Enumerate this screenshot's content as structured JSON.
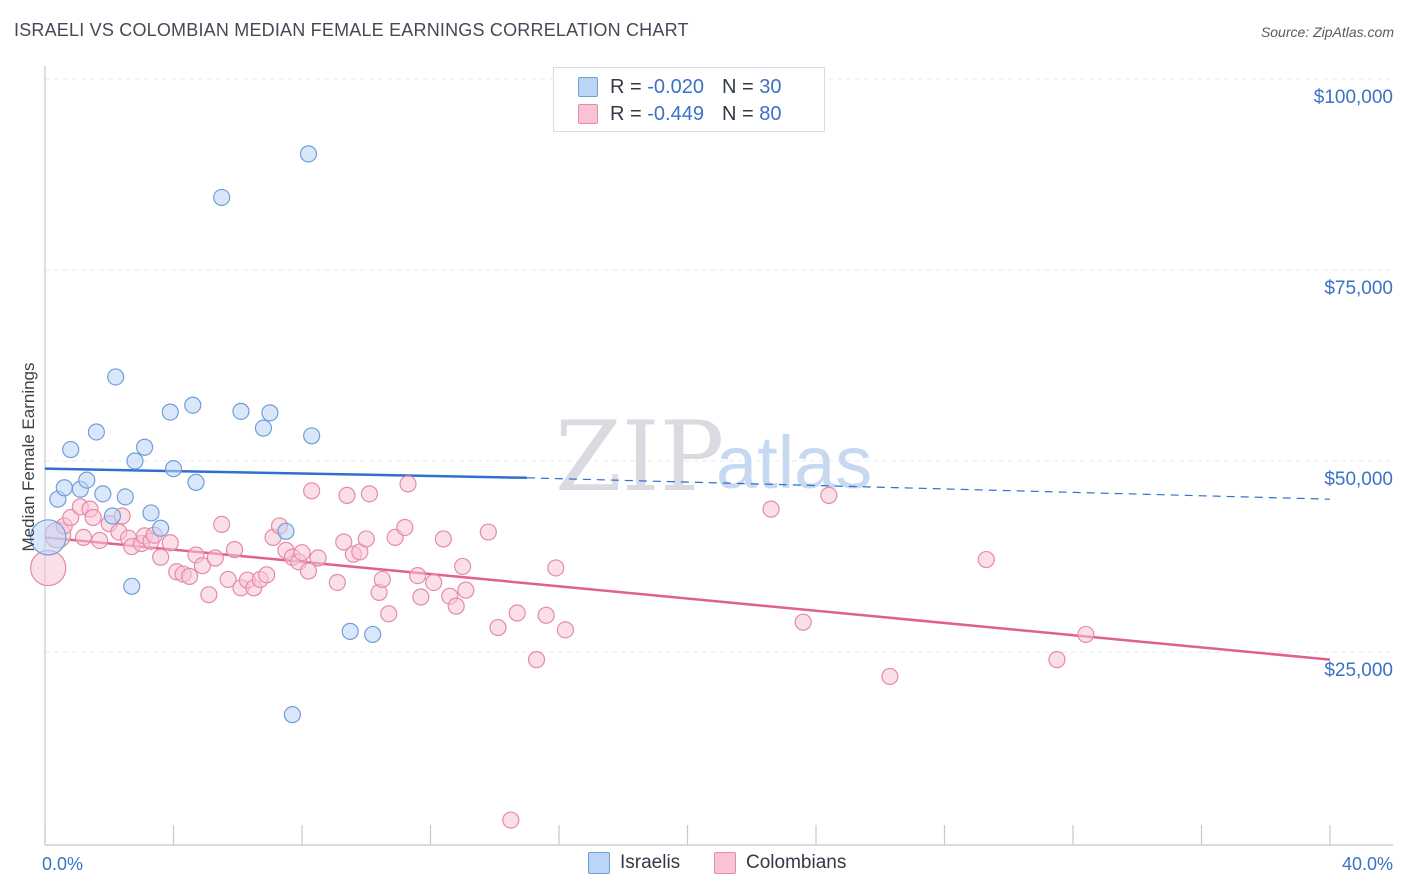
{
  "header": {
    "title": "ISRAELI VS COLOMBIAN MEDIAN FEMALE EARNINGS CORRELATION CHART",
    "source": "Source: ZipAtlas.com"
  },
  "legend": {
    "rows": [
      {
        "r_label": "R =",
        "r_value": "-0.020",
        "n_label": "N =",
        "n_value": "30"
      },
      {
        "r_label": "R =",
        "r_value": "-0.449",
        "n_label": "N =",
        "n_value": "80"
      }
    ],
    "bottom": [
      "Israelis",
      "Colombians"
    ]
  },
  "watermark": {
    "part1": "ZIP",
    "part2": "atlas"
  },
  "colors": {
    "israelis_fill": "#bcd4f5",
    "israelis_stroke": "#6f9fd8",
    "israelis_line": "#2f6fcf",
    "colombians_fill": "#f8c4d5",
    "colombians_stroke": "#e68aa8",
    "colombians_line": "#e0608e",
    "tick_label": "#3a72c4",
    "grid": "#e6e8ec"
  },
  "chart_data": {
    "type": "scatter",
    "title": "ISRAELI VS COLOMBIAN MEDIAN FEMALE EARNINGS CORRELATION CHART",
    "xlabel": "",
    "ylabel": "Median Female Earnings",
    "xlim": [
      0,
      40
    ],
    "ylim": [
      0,
      105000
    ],
    "x_tick_labels": [
      {
        "value": 0,
        "label": "0.0%"
      },
      {
        "value": 40,
        "label": "40.0%"
      }
    ],
    "y_ticks": [
      {
        "value": 25000,
        "label": "$25,000"
      },
      {
        "value": 50000,
        "label": "$50,000"
      },
      {
        "value": 75000,
        "label": "$75,000"
      },
      {
        "value": 100000,
        "label": "$100,000"
      }
    ],
    "series": [
      {
        "name": "Israelis",
        "r": -0.02,
        "n": 30,
        "trend": {
          "x1": 0,
          "y1": 49000,
          "x2": 15,
          "y2": 47800,
          "dash_to_x": 40,
          "dash_to_y": 45000
        },
        "points": [
          [
            0.1,
            40000,
            2.2
          ],
          [
            0.4,
            45000,
            1
          ],
          [
            0.6,
            46500,
            1
          ],
          [
            0.8,
            51500,
            1
          ],
          [
            1.1,
            46300,
            1
          ],
          [
            1.3,
            47500,
            1
          ],
          [
            1.6,
            53800,
            1
          ],
          [
            1.8,
            45700,
            1
          ],
          [
            2.1,
            42800,
            1
          ],
          [
            2.2,
            61000,
            1
          ],
          [
            2.5,
            45300,
            1
          ],
          [
            2.7,
            33600,
            1
          ],
          [
            2.8,
            50000,
            1
          ],
          [
            3.1,
            51800,
            1
          ],
          [
            3.3,
            43200,
            1
          ],
          [
            3.6,
            41200,
            1
          ],
          [
            3.9,
            56400,
            1
          ],
          [
            4.0,
            49000,
            1
          ],
          [
            4.6,
            57300,
            1
          ],
          [
            4.7,
            47200,
            1
          ],
          [
            5.5,
            84500,
            1
          ],
          [
            6.1,
            56500,
            1
          ],
          [
            6.8,
            54300,
            1
          ],
          [
            7.0,
            56300,
            1
          ],
          [
            7.5,
            40800,
            1
          ],
          [
            7.7,
            16800,
            1
          ],
          [
            8.2,
            90200,
            1
          ],
          [
            8.3,
            53300,
            1
          ],
          [
            9.5,
            27700,
            1
          ],
          [
            10.2,
            27300,
            1
          ]
        ]
      },
      {
        "name": "Colombians",
        "r": -0.449,
        "n": 80,
        "trend": {
          "x1": 0,
          "y1": 40000,
          "x2": 40,
          "y2": 24000
        },
        "points": [
          [
            0.1,
            36000,
            2.2
          ],
          [
            0.4,
            40300,
            1.6
          ],
          [
            0.6,
            41500,
            1
          ],
          [
            0.8,
            42600,
            1
          ],
          [
            1.1,
            44000,
            1
          ],
          [
            1.4,
            43700,
            1
          ],
          [
            1.5,
            42600,
            1
          ],
          [
            1.7,
            39600,
            1
          ],
          [
            2.0,
            41800,
            1
          ],
          [
            2.3,
            40700,
            1
          ],
          [
            2.4,
            42800,
            1
          ],
          [
            2.6,
            39900,
            1
          ],
          [
            2.7,
            38800,
            1
          ],
          [
            3.0,
            39200,
            1
          ],
          [
            3.1,
            40200,
            1
          ],
          [
            3.3,
            39500,
            1
          ],
          [
            3.4,
            40300,
            1
          ],
          [
            3.6,
            37400,
            1
          ],
          [
            3.9,
            39300,
            1
          ],
          [
            4.1,
            35500,
            1
          ],
          [
            4.3,
            35200,
            1
          ],
          [
            4.5,
            34900,
            1
          ],
          [
            4.7,
            37700,
            1
          ],
          [
            4.9,
            36300,
            1
          ],
          [
            5.1,
            32500,
            1
          ],
          [
            5.3,
            37300,
            1
          ],
          [
            5.5,
            41700,
            1
          ],
          [
            5.7,
            34500,
            1
          ],
          [
            5.9,
            38400,
            1
          ],
          [
            6.1,
            33400,
            1
          ],
          [
            6.3,
            34400,
            1
          ],
          [
            6.5,
            33400,
            1
          ],
          [
            6.7,
            34500,
            1
          ],
          [
            6.9,
            35100,
            1
          ],
          [
            7.1,
            40000,
            1
          ],
          [
            7.3,
            41500,
            1
          ],
          [
            7.5,
            38300,
            1
          ],
          [
            7.7,
            37400,
            1
          ],
          [
            7.9,
            36800,
            1
          ],
          [
            8.0,
            38000,
            1
          ],
          [
            8.3,
            46100,
            1
          ],
          [
            8.2,
            35600,
            1
          ],
          [
            8.5,
            37300,
            1
          ],
          [
            9.1,
            34100,
            1
          ],
          [
            9.3,
            39400,
            1
          ],
          [
            9.4,
            45500,
            1
          ],
          [
            9.6,
            37800,
            1
          ],
          [
            9.8,
            38100,
            1
          ],
          [
            10.0,
            39800,
            1
          ],
          [
            10.1,
            45700,
            1
          ],
          [
            10.4,
            32800,
            1
          ],
          [
            10.5,
            34500,
            1
          ],
          [
            10.7,
            30000,
            1
          ],
          [
            10.9,
            40000,
            1
          ],
          [
            11.2,
            41300,
            1
          ],
          [
            11.3,
            47000,
            1
          ],
          [
            11.6,
            35000,
            1
          ],
          [
            11.7,
            32200,
            1
          ],
          [
            12.1,
            34100,
            1
          ],
          [
            12.4,
            39800,
            1
          ],
          [
            12.6,
            32300,
            1
          ],
          [
            12.8,
            31000,
            1
          ],
          [
            13.0,
            36200,
            1
          ],
          [
            13.1,
            33100,
            1
          ],
          [
            13.8,
            40700,
            1
          ],
          [
            14.1,
            28200,
            1
          ],
          [
            14.5,
            3000,
            1
          ],
          [
            14.7,
            30100,
            1
          ],
          [
            15.3,
            24000,
            1
          ],
          [
            15.6,
            29800,
            1
          ],
          [
            15.9,
            36000,
            1
          ],
          [
            16.2,
            27900,
            1
          ],
          [
            22.6,
            43700,
            1
          ],
          [
            23.6,
            28900,
            1
          ],
          [
            24.4,
            45500,
            1
          ],
          [
            26.3,
            21800,
            1
          ],
          [
            29.3,
            37100,
            1
          ],
          [
            31.5,
            24000,
            1
          ],
          [
            32.4,
            27300,
            1
          ],
          [
            1.2,
            40000,
            1
          ]
        ]
      }
    ]
  }
}
